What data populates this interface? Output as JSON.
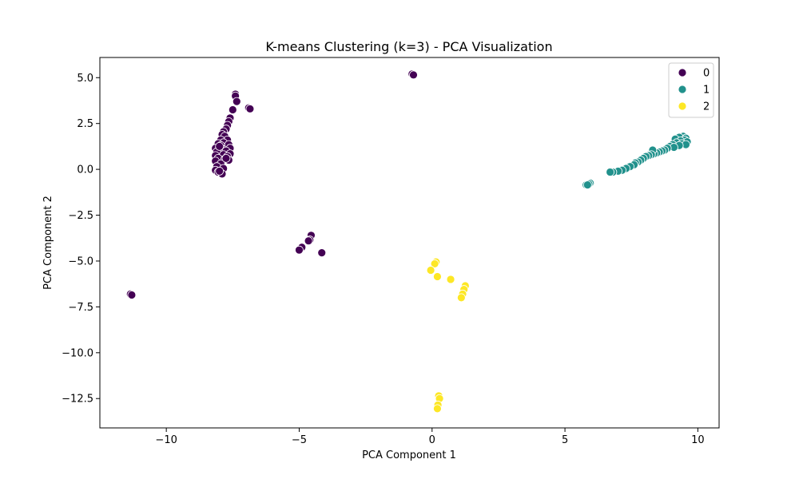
{
  "chart_data": {
    "type": "scatter",
    "title": "K-means Clustering (k=3) - PCA Visualization",
    "xlabel": "PCA Component 1",
    "ylabel": "PCA Component 2",
    "xlim": [
      -12.5,
      10.8
    ],
    "ylim": [
      -14.1,
      6.1
    ],
    "xticks": [
      -10,
      -5,
      0,
      5,
      10
    ],
    "xtick_labels": [
      "−10",
      "−5",
      "0",
      "5",
      "10"
    ],
    "yticks": [
      5.0,
      2.5,
      0.0,
      -2.5,
      -5.0,
      -7.5,
      -10.0,
      -12.5
    ],
    "ytick_labels": [
      "5.0",
      "2.5",
      "0.0",
      "−2.5",
      "−5.0",
      "−7.5",
      "−10.0",
      "−12.5"
    ],
    "grid": false,
    "legend_position": "top-right",
    "series": [
      {
        "name": "0",
        "color": "#440154",
        "points": [
          [
            -7.4,
            4.1
          ],
          [
            -7.4,
            4.0
          ],
          [
            -7.35,
            3.7
          ],
          [
            -7.5,
            3.25
          ],
          [
            -6.9,
            3.35
          ],
          [
            -6.85,
            3.3
          ],
          [
            -7.6,
            2.8
          ],
          [
            -7.65,
            2.6
          ],
          [
            -7.7,
            2.4
          ],
          [
            -7.75,
            2.2
          ],
          [
            -7.85,
            2.05
          ],
          [
            -7.9,
            1.9
          ],
          [
            -7.8,
            1.8
          ],
          [
            -7.7,
            1.6
          ],
          [
            -7.95,
            1.6
          ],
          [
            -7.85,
            1.45
          ],
          [
            -7.65,
            1.35
          ],
          [
            -8.05,
            1.4
          ],
          [
            -7.95,
            1.3
          ],
          [
            -7.6,
            1.15
          ],
          [
            -8.15,
            1.15
          ],
          [
            -7.9,
            1.1
          ],
          [
            -7.75,
            1.0
          ],
          [
            -8.1,
            0.95
          ],
          [
            -7.6,
            0.85
          ],
          [
            -7.85,
            0.8
          ],
          [
            -8.15,
            0.75
          ],
          [
            -7.7,
            0.7
          ],
          [
            -8.05,
            0.6
          ],
          [
            -7.8,
            0.55
          ],
          [
            -7.65,
            0.5
          ],
          [
            -8.15,
            0.45
          ],
          [
            -7.95,
            0.3
          ],
          [
            -8.1,
            0.15
          ],
          [
            -7.85,
            0.05
          ],
          [
            -8.15,
            -0.05
          ],
          [
            -8.05,
            -0.15
          ],
          [
            -7.9,
            -0.25
          ],
          [
            -8.0,
            1.25
          ],
          [
            -8.0,
            -0.1
          ],
          [
            -7.75,
            0.6
          ],
          [
            -0.75,
            5.2
          ],
          [
            -0.7,
            5.15
          ],
          [
            -4.55,
            -3.6
          ],
          [
            -4.6,
            -3.85
          ],
          [
            -4.65,
            -3.9
          ],
          [
            -4.9,
            -4.25
          ],
          [
            -5.0,
            -4.4
          ],
          [
            -4.15,
            -4.55
          ],
          [
            -11.35,
            -6.8
          ],
          [
            -11.3,
            -6.85
          ]
        ]
      },
      {
        "name": "1",
        "color": "#21918c",
        "points": [
          [
            9.45,
            1.8
          ],
          [
            9.3,
            1.75
          ],
          [
            9.55,
            1.7
          ],
          [
            9.15,
            1.65
          ],
          [
            9.5,
            1.6
          ],
          [
            9.35,
            1.55
          ],
          [
            9.6,
            1.5
          ],
          [
            9.2,
            1.45
          ],
          [
            9.4,
            1.4
          ],
          [
            9.05,
            1.35
          ],
          [
            9.55,
            1.35
          ],
          [
            9.3,
            1.3
          ],
          [
            8.95,
            1.25
          ],
          [
            9.1,
            1.2
          ],
          [
            8.85,
            1.15
          ],
          [
            8.75,
            1.05
          ],
          [
            8.65,
            1.0
          ],
          [
            8.55,
            0.95
          ],
          [
            8.45,
            0.9
          ],
          [
            8.35,
            0.85
          ],
          [
            8.3,
            1.05
          ],
          [
            8.25,
            0.8
          ],
          [
            8.15,
            0.75
          ],
          [
            8.05,
            0.7
          ],
          [
            7.95,
            0.6
          ],
          [
            7.85,
            0.5
          ],
          [
            7.75,
            0.4
          ],
          [
            7.65,
            0.35
          ],
          [
            7.6,
            0.25
          ],
          [
            7.45,
            0.15
          ],
          [
            7.3,
            0.05
          ],
          [
            7.15,
            -0.05
          ],
          [
            7.0,
            -0.1
          ],
          [
            6.8,
            -0.15
          ],
          [
            6.7,
            -0.15
          ],
          [
            5.95,
            -0.75
          ],
          [
            5.9,
            -0.8
          ],
          [
            5.8,
            -0.85
          ],
          [
            5.85,
            -0.85
          ]
        ]
      },
      {
        "name": "2",
        "color": "#fde725",
        "points": [
          [
            0.15,
            -5.05
          ],
          [
            0.1,
            -5.15
          ],
          [
            -0.05,
            -5.5
          ],
          [
            0.2,
            -5.85
          ],
          [
            0.7,
            -6.0
          ],
          [
            1.25,
            -6.35
          ],
          [
            1.2,
            -6.55
          ],
          [
            1.15,
            -6.8
          ],
          [
            1.1,
            -7.0
          ],
          [
            0.25,
            -12.35
          ],
          [
            0.28,
            -12.5
          ],
          [
            0.22,
            -12.85
          ],
          [
            0.2,
            -13.05
          ]
        ]
      }
    ]
  }
}
